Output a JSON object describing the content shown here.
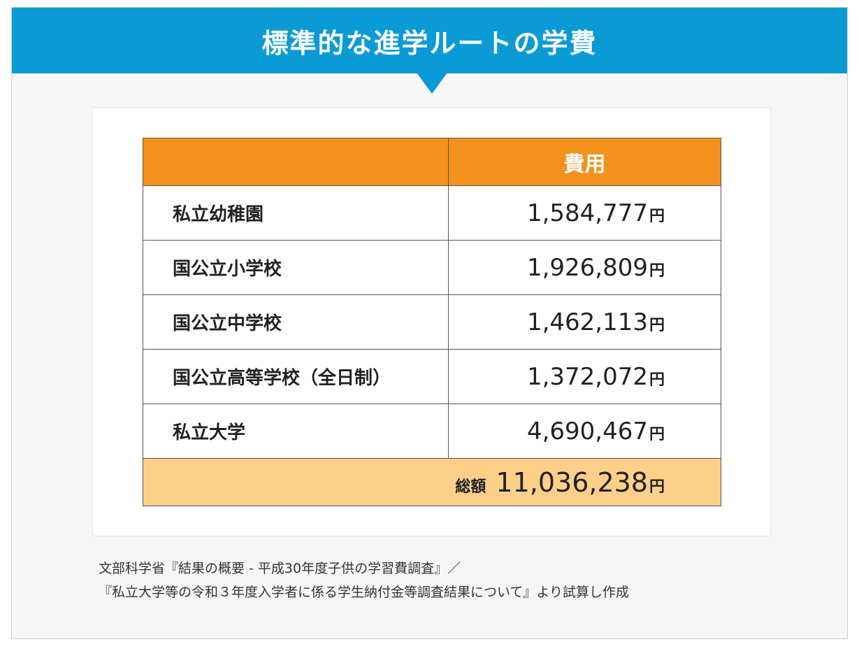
{
  "header": {
    "title": "標準的な進学ルートの学費"
  },
  "table": {
    "column_header": "費用",
    "unit": "円",
    "rows": [
      {
        "name": "私立幼稚園",
        "value": "1,584,777"
      },
      {
        "name": "国公立小学校",
        "value": "1,926,809"
      },
      {
        "name": "国公立中学校",
        "value": "1,462,113"
      },
      {
        "name": "国公立高等学校（全日制）",
        "value": "1,372,072"
      },
      {
        "name": "私立大学",
        "value": "4,690,467"
      }
    ],
    "total_label": "総額",
    "total_value": "11,036,238"
  },
  "source": {
    "line1": "文部科学省『結果の概要 - 平成30年度子供の学習費調査』／",
    "line2": "『私立大学等の令和３年度入学者に係る学生納付金等調査結果について』より試算し作成"
  },
  "colors": {
    "header_bg": "#0a9bd6",
    "table_head_bg": "#f5921e",
    "total_row_bg": "#fdd08a"
  }
}
